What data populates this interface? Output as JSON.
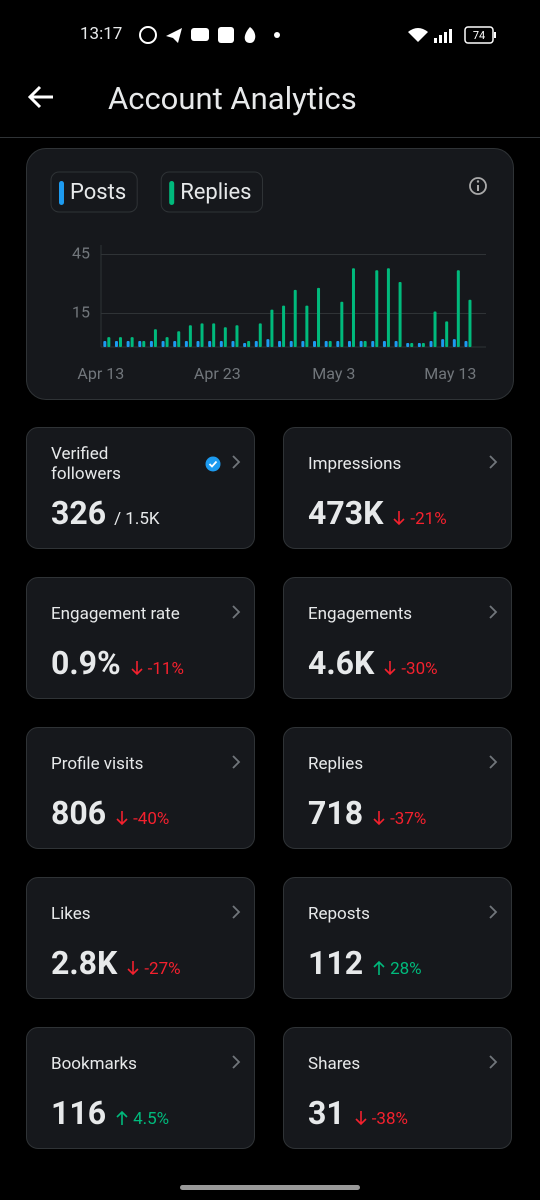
{
  "status_bar": {
    "time": "13:17",
    "battery": "74"
  },
  "header": {
    "title": "Account Analytics"
  },
  "chart_data": {
    "type": "bar",
    "categories": [
      "Apr 13",
      null,
      null,
      null,
      null,
      null,
      null,
      null,
      null,
      null,
      "Apr 23",
      null,
      null,
      null,
      null,
      null,
      null,
      null,
      null,
      null,
      "May 3",
      null,
      null,
      null,
      null,
      null,
      null,
      null,
      null,
      null,
      "May 13",
      null
    ],
    "series": [
      {
        "name": "Posts",
        "color": "#1d9bf0",
        "values": [
          1,
          1,
          1,
          1,
          1,
          1,
          1,
          1,
          1,
          1,
          1,
          1,
          0,
          1,
          2,
          1,
          1,
          1,
          1,
          1,
          1,
          1,
          1,
          1,
          1,
          1,
          0,
          0,
          1,
          2,
          2,
          1
        ]
      },
      {
        "name": "Replies",
        "color": "#00ba7c",
        "values": [
          3,
          3,
          3,
          1,
          7,
          3,
          6,
          9,
          10,
          10,
          8,
          9,
          1,
          10,
          17,
          19,
          27,
          19,
          28,
          1,
          21,
          38,
          1,
          37,
          38,
          31,
          0,
          0,
          16,
          11,
          37,
          22
        ]
      }
    ],
    "ylim": [
      0,
      48
    ],
    "yticks": [
      15,
      45
    ],
    "grid": true
  },
  "cards": [
    {
      "title": "Verified followers",
      "value": "326",
      "total": "/ 1.5K",
      "verified": true
    },
    {
      "title": "Impressions",
      "value": "473K",
      "change": "-21%",
      "trend": "down"
    },
    {
      "title": "Engagement rate",
      "value": "0.9%",
      "change": "-11%",
      "trend": "down"
    },
    {
      "title": "Engagements",
      "value": "4.6K",
      "change": "-30%",
      "trend": "down"
    },
    {
      "title": "Profile visits",
      "value": "806",
      "change": "-40%",
      "trend": "down"
    },
    {
      "title": "Replies",
      "value": "718",
      "change": "-37%",
      "trend": "down"
    },
    {
      "title": "Likes",
      "value": "2.8K",
      "change": "-27%",
      "trend": "down"
    },
    {
      "title": "Reposts",
      "value": "112",
      "change": "28%",
      "trend": "up"
    },
    {
      "title": "Bookmarks",
      "value": "116",
      "change": "4.5%",
      "trend": "up"
    },
    {
      "title": "Shares",
      "value": "31",
      "change": "-38%",
      "trend": "down"
    }
  ]
}
